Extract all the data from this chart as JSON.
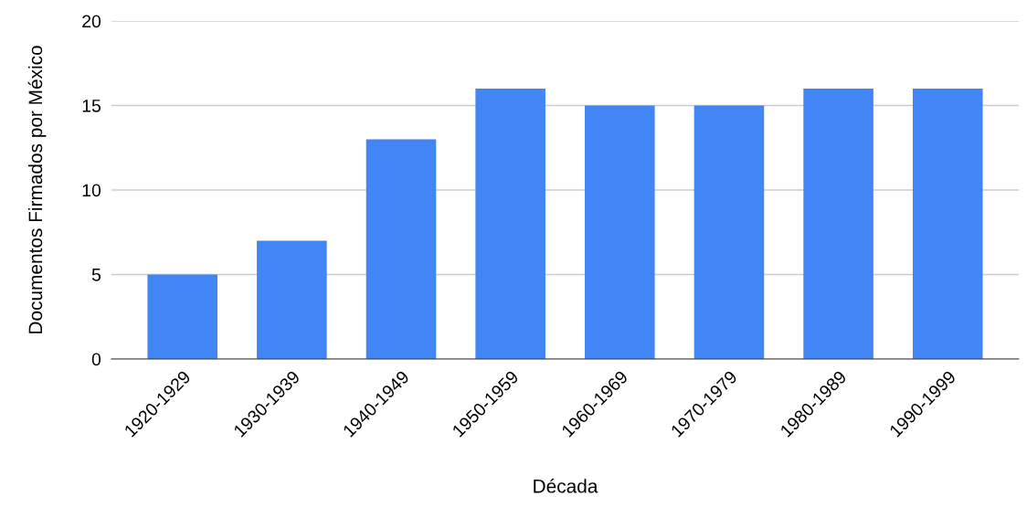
{
  "chart_data": {
    "type": "bar",
    "xlabel": "Década",
    "ylabel": "Documentos Firmados por México",
    "categories": [
      "1920-1929",
      "1930-1939",
      "1940-1949",
      "1950-1959",
      "1960-1969",
      "1970-1979",
      "1980-1989",
      "1990-1999"
    ],
    "values": [
      5,
      7,
      13,
      16,
      15,
      15,
      16,
      16
    ],
    "color": "#4285f4",
    "ylim": [
      0,
      20
    ],
    "yticks": [
      0,
      5,
      10,
      15,
      20
    ],
    "grid": "y"
  }
}
